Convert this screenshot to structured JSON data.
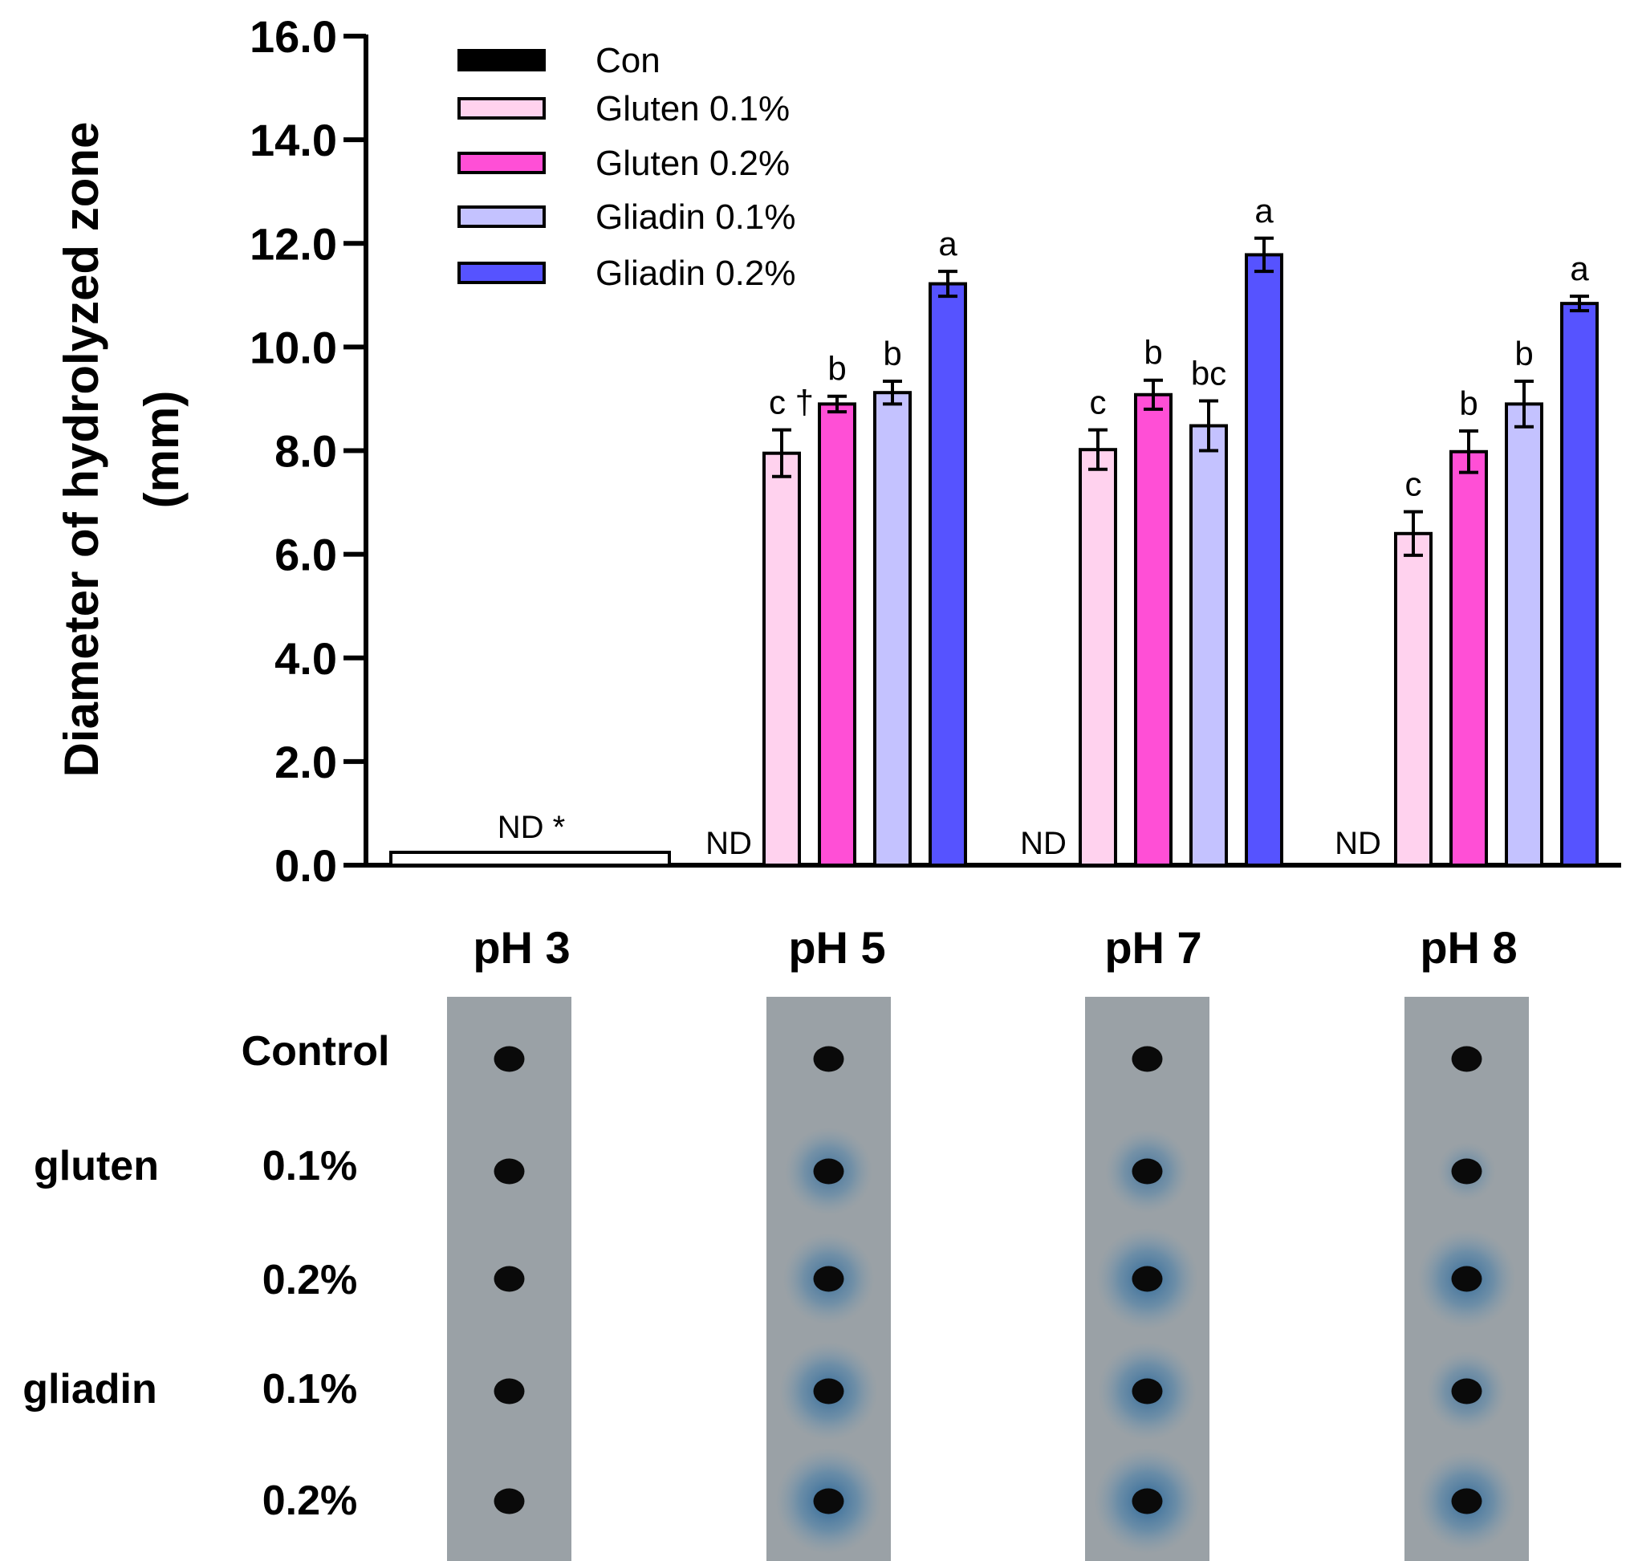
{
  "chart_data": {
    "type": "bar",
    "title": "",
    "ylabel": "Diameter of hydrolyzed zone",
    "ylabel_unit": "(mm)",
    "xlabel": "",
    "ylim": [
      0,
      16
    ],
    "yticks": [
      "0.0",
      "2.0",
      "4.0",
      "6.0",
      "8.0",
      "10.0",
      "12.0",
      "14.0",
      "16.0"
    ],
    "categories": [
      "pH 3",
      "pH 5",
      "pH 7",
      "pH 8"
    ],
    "series": [
      {
        "name": "Con",
        "color": "#000000",
        "values": [
          0,
          0,
          0,
          0
        ],
        "errors": [
          0,
          0,
          0,
          0
        ],
        "letters": [
          "",
          "",
          "",
          ""
        ]
      },
      {
        "name": "Gluten 0.1%",
        "color": "#ffd2ee",
        "values": [
          0,
          7.95,
          8.02,
          6.4
        ],
        "errors": [
          0,
          0.45,
          0.38,
          0.42
        ],
        "letters": [
          "",
          "c †",
          "c",
          "c"
        ]
      },
      {
        "name": "Gluten 0.2%",
        "color": "#ff4fd6",
        "values": [
          0,
          8.9,
          9.08,
          7.98
        ],
        "errors": [
          0,
          0.15,
          0.28,
          0.4
        ],
        "letters": [
          "",
          "b",
          "b",
          "b"
        ]
      },
      {
        "name": "Gliadin 0.1%",
        "color": "#c4c2ff",
        "values": [
          0,
          9.12,
          8.48,
          8.9
        ],
        "errors": [
          0,
          0.22,
          0.48,
          0.44
        ],
        "letters": [
          "",
          "b",
          "bc",
          "b"
        ]
      },
      {
        "name": "Gliadin 0.2%",
        "color": "#5653ff",
        "values": [
          0,
          11.22,
          11.78,
          10.84
        ],
        "errors": [
          0,
          0.24,
          0.32,
          0.14
        ],
        "letters": [
          "",
          "a",
          "a",
          "a"
        ]
      }
    ],
    "nd_labels": {
      "ph3": "ND *",
      "ph5": "ND",
      "ph7": "ND",
      "ph8": "ND"
    },
    "legend_position": "top-left",
    "grid": false
  },
  "photo_panel": {
    "row_labels": {
      "control": "Control",
      "gluten": "gluten",
      "gliadin": "gliadin",
      "gluten_01": "0.1%",
      "gluten_02": "0.2%",
      "gliadin_01": "0.1%",
      "gliadin_02": "0.2%"
    },
    "rows": [
      {
        "name": "Control",
        "halo": [
          0,
          0,
          0,
          0
        ]
      },
      {
        "name": "gluten 0.1%",
        "halo": [
          0,
          0.55,
          0.5,
          0.15
        ]
      },
      {
        "name": "gluten 0.2%",
        "halo": [
          0,
          0.6,
          0.75,
          0.7
        ]
      },
      {
        "name": "gliadin 0.1%",
        "halo": [
          0,
          0.7,
          0.7,
          0.45
        ]
      },
      {
        "name": "gliadin 0.2%",
        "halo": [
          0,
          0.8,
          0.8,
          0.7
        ]
      }
    ],
    "plate_color": "#9aa1a6",
    "halo_color": "#2f6ea3"
  }
}
